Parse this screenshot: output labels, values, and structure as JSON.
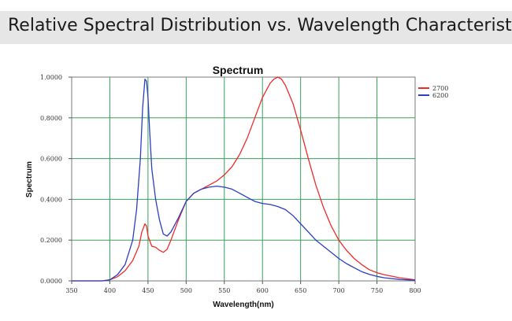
{
  "header": {
    "title": "Relative Spectral Distribution vs. Wavelength Characteristic"
  },
  "chart_data": {
    "type": "line",
    "title": "Spectrum",
    "xlabel": "Wavelength(nm)",
    "ylabel": "Spectrum",
    "xlim": [
      350,
      800
    ],
    "ylim": [
      0,
      1
    ],
    "xticks": [
      "350",
      "400",
      "450",
      "500",
      "550",
      "600",
      "650",
      "700",
      "750",
      "800"
    ],
    "yticks": [
      "0.0000",
      "0.2000",
      "0.4000",
      "0.6000",
      "0.8000",
      "1.0000"
    ],
    "grid": true,
    "legend_position": "top-right",
    "series": [
      {
        "name": "2700",
        "color": "#ee2b2b",
        "x": [
          350,
          390,
          400,
          410,
          420,
          430,
          438,
          442,
          446,
          448,
          450,
          455,
          460,
          465,
          470,
          475,
          480,
          490,
          500,
          510,
          520,
          530,
          540,
          550,
          560,
          570,
          580,
          590,
          600,
          610,
          615,
          620,
          625,
          630,
          640,
          650,
          660,
          670,
          680,
          690,
          700,
          710,
          720,
          730,
          740,
          750,
          760,
          780,
          800
        ],
        "y": [
          0,
          0,
          0.005,
          0.02,
          0.05,
          0.1,
          0.17,
          0.24,
          0.28,
          0.27,
          0.22,
          0.17,
          0.165,
          0.15,
          0.14,
          0.155,
          0.2,
          0.3,
          0.39,
          0.43,
          0.45,
          0.47,
          0.49,
          0.52,
          0.56,
          0.62,
          0.7,
          0.8,
          0.9,
          0.97,
          0.99,
          1.0,
          0.99,
          0.96,
          0.87,
          0.74,
          0.6,
          0.47,
          0.36,
          0.27,
          0.2,
          0.15,
          0.11,
          0.08,
          0.055,
          0.04,
          0.03,
          0.015,
          0.005
        ]
      },
      {
        "name": "6200",
        "color": "#2b3fc1",
        "x": [
          350,
          390,
          400,
          410,
          420,
          430,
          435,
          440,
          443,
          446,
          448,
          450,
          452,
          455,
          460,
          465,
          470,
          475,
          480,
          490,
          500,
          510,
          520,
          530,
          540,
          550,
          560,
          570,
          580,
          590,
          600,
          610,
          620,
          630,
          640,
          650,
          660,
          670,
          680,
          690,
          700,
          710,
          720,
          730,
          740,
          750,
          760,
          780,
          800
        ],
        "y": [
          0,
          0,
          0.005,
          0.03,
          0.08,
          0.2,
          0.35,
          0.6,
          0.85,
          0.99,
          0.98,
          0.9,
          0.75,
          0.55,
          0.4,
          0.3,
          0.23,
          0.22,
          0.24,
          0.31,
          0.39,
          0.43,
          0.45,
          0.46,
          0.465,
          0.46,
          0.45,
          0.43,
          0.41,
          0.39,
          0.38,
          0.375,
          0.365,
          0.35,
          0.32,
          0.28,
          0.24,
          0.2,
          0.17,
          0.14,
          0.11,
          0.085,
          0.065,
          0.045,
          0.032,
          0.022,
          0.015,
          0.007,
          0.003
        ]
      }
    ]
  }
}
